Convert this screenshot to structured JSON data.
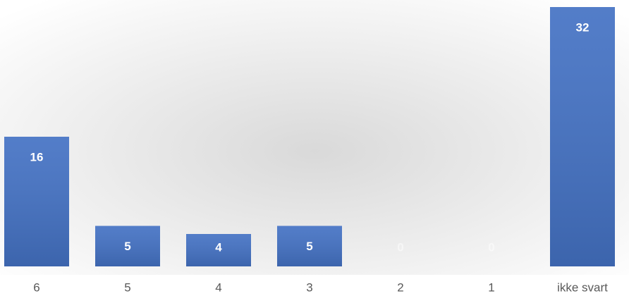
{
  "chart_data": {
    "type": "bar",
    "categories": [
      "6",
      "5",
      "4",
      "3",
      "2",
      "1",
      "ikke svart"
    ],
    "values": [
      16,
      5,
      4,
      5,
      0,
      0,
      32
    ],
    "color": "#4472c4"
  }
}
